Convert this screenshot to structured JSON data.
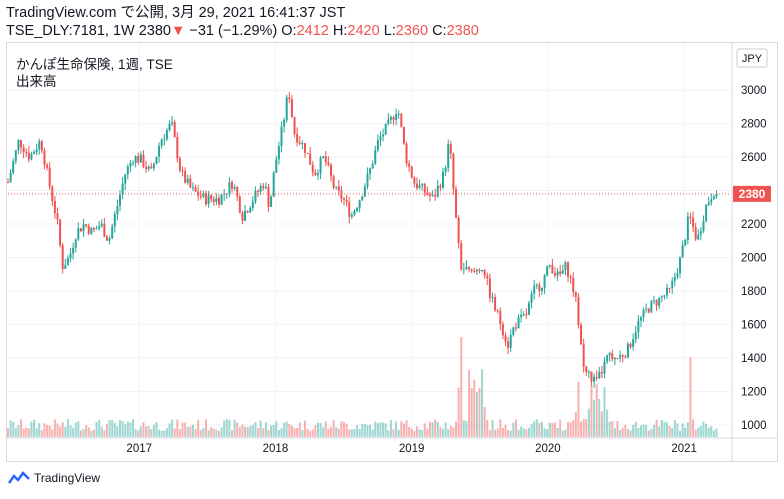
{
  "header": {
    "source": "TradingView.com",
    "published": "で公開, 3月 29, 2021 16:41:37 JST",
    "symbol": "TSE_DLY:7181, 1W",
    "last": "2380",
    "change_arrow": "▼",
    "change": "−31 (−1.29%)",
    "open_label": "O:",
    "open": "2412",
    "high_label": "H:",
    "high": "2420",
    "low_label": "L:",
    "low": "2360",
    "close_label": "C:",
    "close": "2380"
  },
  "legend": {
    "title": "かんぽ生命保険, 1週, TSE",
    "volume": "出来高"
  },
  "footer": {
    "brand": "TradingView"
  },
  "colors": {
    "up": "#26a69a",
    "down": "#ef5350",
    "axis": "#131722",
    "grid": "#f0f3fa"
  },
  "chart_data": {
    "type": "candlestick",
    "currency": "JPY",
    "x_ticks": [
      "2017",
      "2018",
      "2019",
      "2020",
      "2021"
    ],
    "y_ticks": [
      1000,
      1200,
      1400,
      1600,
      1800,
      2000,
      2200,
      2400,
      2600,
      2800,
      3000
    ],
    "ylim": [
      950,
      3120
    ],
    "last_price": 2380,
    "series_close": [
      [
        2016.0,
        2450
      ],
      [
        2016.08,
        2700
      ],
      [
        2016.16,
        2600
      ],
      [
        2016.24,
        2700
      ],
      [
        2016.3,
        2450
      ],
      [
        2016.36,
        2220
      ],
      [
        2016.4,
        1950
      ],
      [
        2016.45,
        2000
      ],
      [
        2016.5,
        2150
      ],
      [
        2016.56,
        2200
      ],
      [
        2016.62,
        2150
      ],
      [
        2016.68,
        2200
      ],
      [
        2016.74,
        2100
      ],
      [
        2016.8,
        2300
      ],
      [
        2016.86,
        2500
      ],
      [
        2016.92,
        2600
      ],
      [
        2016.98,
        2580
      ],
      [
        2017.05,
        2500
      ],
      [
        2017.12,
        2700
      ],
      [
        2017.2,
        2800
      ],
      [
        2017.27,
        2500
      ],
      [
        2017.35,
        2400
      ],
      [
        2017.45,
        2350
      ],
      [
        2017.55,
        2350
      ],
      [
        2017.65,
        2450
      ],
      [
        2017.72,
        2250
      ],
      [
        2017.8,
        2350
      ],
      [
        2017.88,
        2450
      ],
      [
        2017.92,
        2300
      ],
      [
        2017.96,
        2550
      ],
      [
        2018.02,
        2800
      ],
      [
        2018.06,
        3000
      ],
      [
        2018.1,
        2750
      ],
      [
        2018.18,
        2650
      ],
      [
        2018.25,
        2500
      ],
      [
        2018.32,
        2600
      ],
      [
        2018.4,
        2400
      ],
      [
        2018.46,
        2350
      ],
      [
        2018.52,
        2250
      ],
      [
        2018.58,
        2350
      ],
      [
        2018.65,
        2500
      ],
      [
        2018.72,
        2700
      ],
      [
        2018.8,
        2800
      ],
      [
        2018.86,
        2900
      ],
      [
        2018.92,
        2600
      ],
      [
        2018.98,
        2450
      ],
      [
        2019.05,
        2400
      ],
      [
        2019.12,
        2350
      ],
      [
        2019.2,
        2500
      ],
      [
        2019.24,
        2700
      ],
      [
        2019.28,
        2300
      ],
      [
        2019.32,
        1950
      ],
      [
        2019.4,
        1900
      ],
      [
        2019.48,
        1950
      ],
      [
        2019.55,
        1750
      ],
      [
        2019.62,
        1600
      ],
      [
        2019.67,
        1480
      ],
      [
        2019.72,
        1600
      ],
      [
        2019.8,
        1650
      ],
      [
        2019.86,
        1800
      ],
      [
        2019.92,
        1850
      ],
      [
        2019.98,
        1960
      ],
      [
        2020.04,
        1880
      ],
      [
        2020.1,
        1950
      ],
      [
        2020.16,
        1780
      ],
      [
        2020.2,
        1550
      ],
      [
        2020.22,
        1350
      ],
      [
        2020.26,
        1300
      ],
      [
        2020.32,
        1250
      ],
      [
        2020.4,
        1400
      ],
      [
        2020.48,
        1400
      ],
      [
        2020.55,
        1450
      ],
      [
        2020.62,
        1600
      ],
      [
        2020.7,
        1700
      ],
      [
        2020.78,
        1750
      ],
      [
        2020.86,
        1800
      ],
      [
        2020.94,
        2000
      ],
      [
        2021.0,
        2250
      ],
      [
        2021.06,
        2100
      ],
      [
        2021.12,
        2300
      ],
      [
        2021.18,
        2400
      ],
      [
        2021.22,
        2380
      ]
    ]
  }
}
